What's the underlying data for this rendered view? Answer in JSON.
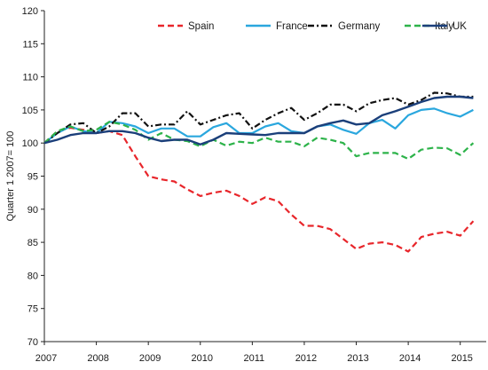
{
  "chart_data": {
    "type": "line",
    "ylabel": "Quarter 1 2007= 100",
    "ylim": [
      70,
      120
    ],
    "yticks": [
      "70",
      "75",
      "80",
      "85",
      "90",
      "95",
      "100",
      "105",
      "110",
      "115",
      "120"
    ],
    "xlim": [
      2007,
      2015.5
    ],
    "xticks": [
      "2007",
      "2008",
      "2009",
      "2010",
      "2011",
      "2012",
      "2013",
      "2014",
      "2015"
    ],
    "grid": false,
    "legend_position": "top",
    "series": [
      {
        "name": "Spain",
        "color": "#e8262b",
        "dash": "dashed",
        "x": [
          2007,
          2007.25,
          2007.5,
          2007.75,
          2008,
          2008.25,
          2008.5,
          2008.75,
          2009,
          2009.25,
          2009.5,
          2009.75,
          2010,
          2010.25,
          2010.5,
          2010.75,
          2011,
          2011.25,
          2011.5,
          2011.75,
          2012,
          2012.25,
          2012.5,
          2012.75,
          2013,
          2013.25,
          2013.5,
          2013.75,
          2014,
          2014.25,
          2014.5,
          2014.75,
          2015,
          2015.25
        ],
        "values": [
          100,
          101.8,
          102.3,
          102.0,
          101.5,
          101.8,
          101.2,
          98.0,
          95.0,
          94.5,
          94.2,
          93.0,
          92.0,
          92.5,
          92.8,
          92.0,
          90.8,
          91.8,
          91.2,
          89.2,
          87.5,
          87.5,
          87.0,
          85.5,
          84.0,
          84.8,
          85.0,
          84.6,
          83.6,
          85.8,
          86.3,
          86.6,
          86.0,
          88.2
        ]
      },
      {
        "name": "France",
        "color": "#2aa7de",
        "dash": "solid",
        "x": [
          2007,
          2007.25,
          2007.5,
          2007.75,
          2008,
          2008.25,
          2008.5,
          2008.75,
          2009,
          2009.25,
          2009.5,
          2009.75,
          2010,
          2010.25,
          2010.5,
          2010.75,
          2011,
          2011.25,
          2011.5,
          2011.75,
          2012,
          2012.25,
          2012.5,
          2012.75,
          2013,
          2013.25,
          2013.5,
          2013.75,
          2014,
          2014.25,
          2014.5,
          2014.75,
          2015,
          2015.25
        ],
        "values": [
          100,
          101.5,
          102.5,
          101.8,
          101.5,
          103.2,
          103.0,
          102.5,
          101.5,
          102.2,
          102.2,
          101.0,
          101.0,
          102.4,
          103.0,
          101.5,
          101.5,
          102.5,
          103.0,
          101.8,
          101.5,
          102.5,
          102.8,
          102.0,
          101.4,
          103.0,
          103.5,
          102.2,
          104.2,
          105.0,
          105.2,
          104.5,
          104.0,
          105.0
        ]
      },
      {
        "name": "Germany",
        "color": "#111111",
        "dash": "dashdot",
        "x": [
          2007,
          2007.25,
          2007.5,
          2007.75,
          2008,
          2008.25,
          2008.5,
          2008.75,
          2009,
          2009.25,
          2009.5,
          2009.75,
          2010,
          2010.25,
          2010.5,
          2010.75,
          2011,
          2011.25,
          2011.5,
          2011.75,
          2012,
          2012.25,
          2012.5,
          2012.75,
          2013,
          2013.25,
          2013.5,
          2013.75,
          2014,
          2014.25,
          2014.5,
          2014.75,
          2015,
          2015.25
        ],
        "values": [
          100,
          101.5,
          102.8,
          103.0,
          101.5,
          102.5,
          104.5,
          104.5,
          102.5,
          102.8,
          102.8,
          104.8,
          102.8,
          103.5,
          104.2,
          104.5,
          102.2,
          103.5,
          104.5,
          105.3,
          103.5,
          104.5,
          105.8,
          105.8,
          104.8,
          106.0,
          106.5,
          106.8,
          105.8,
          106.5,
          107.6,
          107.5,
          107.0,
          107.0
        ]
      },
      {
        "name": "Italy",
        "color": "#2db34a",
        "dash": "dashed",
        "x": [
          2007,
          2007.25,
          2007.5,
          2007.75,
          2008,
          2008.25,
          2008.5,
          2008.75,
          2009,
          2009.25,
          2009.5,
          2009.75,
          2010,
          2010.25,
          2010.5,
          2010.75,
          2011,
          2011.25,
          2011.5,
          2011.75,
          2012,
          2012.25,
          2012.5,
          2012.75,
          2013,
          2013.25,
          2013.5,
          2013.75,
          2014,
          2014.25,
          2014.5,
          2014.75,
          2015,
          2015.25
        ],
        "values": [
          100,
          101.8,
          102.5,
          101.8,
          102.0,
          103.2,
          102.8,
          102.0,
          100.5,
          101.5,
          100.5,
          100.3,
          99.5,
          100.5,
          99.6,
          100.2,
          100.0,
          100.8,
          100.2,
          100.2,
          99.5,
          100.8,
          100.5,
          100.0,
          98.0,
          98.5,
          98.5,
          98.5,
          97.6,
          99.0,
          99.3,
          99.2,
          98.2,
          100.0
        ]
      },
      {
        "name": "UK",
        "color": "#1b3f7a",
        "dash": "solid",
        "x": [
          2007,
          2007.25,
          2007.5,
          2007.75,
          2008,
          2008.25,
          2008.5,
          2008.75,
          2009,
          2009.25,
          2009.5,
          2009.75,
          2010,
          2010.25,
          2010.5,
          2010.75,
          2011,
          2011.25,
          2011.5,
          2011.75,
          2012,
          2012.25,
          2012.5,
          2012.75,
          2013,
          2013.25,
          2013.5,
          2013.75,
          2014,
          2014.25,
          2014.5,
          2014.75,
          2015,
          2015.25
        ],
        "values": [
          100,
          100.5,
          101.2,
          101.5,
          101.5,
          101.8,
          101.8,
          101.5,
          100.8,
          100.3,
          100.5,
          100.5,
          99.8,
          100.5,
          101.5,
          101.4,
          101.3,
          101.2,
          101.5,
          101.5,
          101.5,
          102.5,
          103.0,
          103.4,
          102.8,
          103.0,
          104.2,
          104.8,
          105.5,
          106.2,
          106.8,
          107.0,
          107.0,
          106.8
        ]
      }
    ]
  }
}
